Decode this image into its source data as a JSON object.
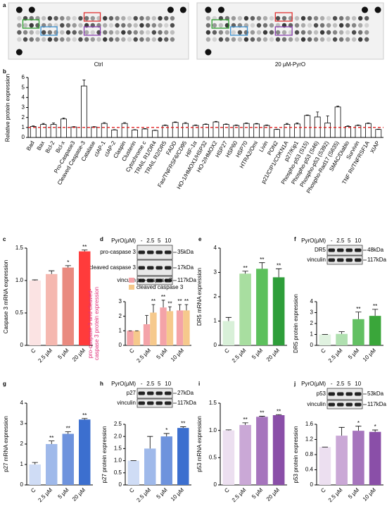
{
  "figure_a": {
    "panel": "a",
    "membranes": [
      "Ctrl",
      "20 μM-PyrO"
    ]
  },
  "blots": [
    {
      "treatment_label": "PyrO(μM)",
      "lanes": [
        "-",
        "2.5",
        "5",
        "10"
      ],
      "rows": [
        {
          "name": "pro-caspase 3",
          "kda": "35kDa"
        },
        {
          "name": "cleaved caspase 3",
          "kda": "17kDa"
        },
        {
          "name": "vinculin",
          "kda": "117kDa"
        }
      ]
    },
    {
      "treatment_label": "PyrO(μM)",
      "lanes": [
        "-",
        "2.5",
        "5",
        "10"
      ],
      "rows": [
        {
          "name": "DR5",
          "kda": "48kDa"
        },
        {
          "name": "vinculin",
          "kda": "117kDa"
        }
      ]
    },
    {
      "treatment_label": "PyrO(μM)",
      "lanes": [
        "-",
        "2.5",
        "5",
        "10"
      ],
      "rows": [
        {
          "name": "p27",
          "kda": "27kDa"
        },
        {
          "name": "vinculin",
          "kda": "117kDa"
        }
      ]
    },
    {
      "treatment_label": "PyrO(μM)",
      "lanes": [
        "-",
        "2.5",
        "5",
        "10"
      ],
      "rows": [
        {
          "name": "p53",
          "kda": "53kDa"
        },
        {
          "name": "vinculin",
          "kda": "117kDa"
        }
      ]
    }
  ],
  "chart_data": [
    {
      "type": "bar",
      "panel": "b",
      "ylabel": "Relative protein expression",
      "categories": [
        "Bad",
        "Bax",
        "Bcl-2",
        "Bcl-x",
        "Pro-Caspase3",
        "Cleaved Caspase-3",
        "Catalase",
        "cIAP-1",
        "cIAP-2",
        "Claspin",
        "Clusterin",
        "Cytochrome c",
        "TRAIL R1/DR4",
        "TRAIL R2/DR5",
        "FADD",
        "Fas/TNFRSF6/CD95",
        "HIF-1α",
        "HO-1/HMOX1/HSP32",
        "HO-2/HMOX2",
        "HSP27",
        "HSP60",
        "HSP70",
        "HTRA2/Omi",
        "Livin",
        "PON2",
        "p21/CIP1/CDKN1A",
        "p27/Kip1",
        "Phospho-p53 (S15)",
        "Phospho-p53 (S46)",
        "Phospho-p53 (S392)",
        "Phospho-Rad17 (S635)",
        "SMAC/Diablo",
        "Survivin",
        "TNF RI/TNFRSF1A",
        "XIAP"
      ],
      "label_colors": [
        "#000000",
        "#000000",
        "#000000",
        "#000000",
        "#000000",
        "#e02020",
        "#000000",
        "#000000",
        "#000000",
        "#000000",
        "#000000",
        "#000000",
        "#000000",
        "#1a9a3a",
        "#000000",
        "#000000",
        "#000000",
        "#000000",
        "#000000",
        "#000000",
        "#000000",
        "#000000",
        "#000000",
        "#000000",
        "#000000",
        "#000000",
        "#2f7fd0",
        "#000000",
        "#000000",
        "#8a3fb0",
        "#000000",
        "#000000",
        "#000000",
        "#000000",
        "#000000"
      ],
      "values": [
        1.1,
        1.3,
        1.3,
        1.85,
        1.05,
        5.15,
        1.05,
        1.4,
        0.75,
        1.4,
        0.75,
        0.85,
        0.7,
        1.2,
        1.5,
        1.4,
        1.2,
        1.3,
        1.55,
        1.3,
        1.2,
        1.4,
        1.35,
        1.2,
        0.8,
        1.3,
        1.35,
        2.2,
        2.05,
        1.45,
        3.05,
        1.1,
        1.2,
        1.4,
        0.8
      ],
      "errors": [
        0.05,
        0.1,
        0.15,
        0.1,
        0.03,
        0.6,
        0.03,
        0.08,
        0.03,
        0.08,
        0.03,
        0.04,
        0.03,
        0.05,
        0.05,
        0.08,
        0.05,
        0.05,
        0.05,
        0.05,
        0.05,
        0.05,
        0.05,
        0.05,
        0.03,
        0.1,
        0.1,
        0.05,
        0.5,
        0.7,
        0.1,
        0.05,
        0.05,
        0.05,
        0.03
      ],
      "color": "#ffffff",
      "edgecolor": "#000000",
      "refline": 1,
      "refline_color": "#e02020",
      "ylim": [
        0,
        6
      ],
      "yticks": [
        0,
        1,
        2,
        3,
        4,
        5,
        6
      ]
    },
    {
      "type": "bar",
      "panel": "c",
      "ylabel": "Caspase 3 mRNA expression",
      "categories": [
        "C",
        "2.5 μM",
        "5 μM",
        "20 μM"
      ],
      "values": [
        1,
        1.1,
        1.2,
        1.45
      ],
      "errors": [
        0.01,
        0.05,
        0.03,
        0.02
      ],
      "significance": [
        null,
        null,
        "*",
        "**"
      ],
      "colors": [
        "#fbe3e3",
        "#f5b8b0",
        "#e98a7f",
        "#ff3b3b"
      ],
      "ylim": [
        0,
        1.5
      ],
      "yticks": [
        0,
        0.5,
        {
          "value": 1,
          "label": "1.0"
        },
        1.5
      ]
    },
    {
      "type": "grouped_bar",
      "panel": "d",
      "ylabel": "pro-caspase 3 and cleaved-caspase 3 protein expression",
      "ylabel_color": "#e0307a",
      "categories": [
        "C",
        "2.5 μM",
        "5 μM",
        "10 μM"
      ],
      "series": [
        {
          "name": "pro-caspase 3",
          "color": "#f4a3a8",
          "values": [
            1,
            1.45,
            2.6,
            2.4
          ],
          "errors": [
            0,
            0.6,
            0.5,
            0.4
          ],
          "significance": [
            null,
            null,
            "**",
            "**"
          ]
        },
        {
          "name": "cleaved caspase 3",
          "color": "#f6c98c",
          "values": [
            1,
            2.25,
            2.35,
            2.4
          ],
          "errors": [
            0,
            0.55,
            0.3,
            0.4
          ],
          "significance": [
            null,
            "**",
            "**",
            "**"
          ]
        }
      ],
      "ylim": [
        0,
        3
      ],
      "yticks": [
        0,
        1,
        2,
        3
      ]
    },
    {
      "type": "bar",
      "panel": "e",
      "ylabel": "DR5 mRNA expression",
      "categories": [
        "C",
        "2.5 μM",
        "5 μM",
        "20 μM"
      ],
      "values": [
        1,
        2.95,
        3.15,
        2.8
      ],
      "errors": [
        0.15,
        0.1,
        0.25,
        0.35
      ],
      "significance": [
        null,
        "**",
        "**",
        "**"
      ],
      "colors": [
        "#d8f0d8",
        "#a8dea0",
        "#5cc05c",
        "#2e9e3a"
      ],
      "ylim": [
        0,
        4
      ],
      "yticks": [
        0,
        1,
        2,
        3,
        4
      ]
    },
    {
      "type": "bar",
      "panel": "f",
      "ylabel": "DR5 protein expression",
      "categories": [
        "C",
        "2.5 μM",
        "5 μM",
        "10 μM"
      ],
      "values": [
        1,
        1.05,
        2.4,
        2.7
      ],
      "errors": [
        0,
        0.2,
        0.65,
        0.6
      ],
      "significance": [
        null,
        null,
        "**",
        "**"
      ],
      "colors": [
        "#e0f2e0",
        "#b0e0b0",
        "#62c062",
        "#3aa63a"
      ],
      "ylim": [
        0,
        4
      ],
      "yticks": [
        0,
        1,
        2,
        3,
        4
      ]
    },
    {
      "type": "bar",
      "panel": "g",
      "ylabel": "p27 mRNA expression",
      "categories": [
        "C",
        "2.5 μM",
        "5 μM",
        "20 μM"
      ],
      "values": [
        1,
        2,
        2.5,
        3.2
      ],
      "errors": [
        0.1,
        0.15,
        0.1,
        0.05
      ],
      "significance": [
        null,
        "**",
        "**",
        "**"
      ],
      "colors": [
        "#cfdcf5",
        "#9fb9ea",
        "#6e93dd",
        "#3c6fcf"
      ],
      "ylim": [
        0,
        4
      ],
      "yticks": [
        0,
        1,
        2,
        3,
        4
      ]
    },
    {
      "type": "bar",
      "panel": "h",
      "ylabel": "p27 protein expression",
      "categories": [
        "C",
        "2.5 μM",
        "5 μM",
        "10 μM"
      ],
      "values": [
        1,
        1.5,
        2,
        2.35
      ],
      "errors": [
        0,
        0.5,
        0.12,
        0.05
      ],
      "significance": [
        null,
        null,
        "*",
        "**"
      ],
      "colors": [
        "#cfdcf5",
        "#9fb9ea",
        "#6e93dd",
        "#3c6fcf"
      ],
      "ylim": [
        0,
        2.5
      ],
      "yticks": [
        0,
        0.5,
        {
          "value": 1,
          "label": "1.0"
        },
        1.5,
        {
          "value": 2,
          "label": "2.0"
        },
        2.5
      ]
    },
    {
      "type": "bar",
      "panel": "i",
      "ylabel": "p53 mRNA expression",
      "categories": [
        "C",
        "2.5 μM",
        "5 μM",
        "20 μM"
      ],
      "values": [
        1,
        1.1,
        1.25,
        1.28
      ],
      "errors": [
        0.01,
        0.04,
        0.01,
        0.01
      ],
      "significance": [
        null,
        "**",
        "**",
        "**"
      ],
      "colors": [
        "#ecdff0",
        "#caa8d6",
        "#a675bd",
        "#8a4fa8"
      ],
      "ylim": [
        0,
        1.5
      ],
      "yticks": [
        0,
        0.5,
        {
          "value": 1,
          "label": "1.0"
        },
        1.5
      ]
    },
    {
      "type": "bar",
      "panel": "j",
      "ylabel": "p53 protein expression",
      "categories": [
        "C",
        "2.5 μM",
        "5 μM",
        "10 μM"
      ],
      "values": [
        1,
        1.3,
        1.43,
        1.4
      ],
      "errors": [
        0,
        0.22,
        0.12,
        0.05
      ],
      "significance": [
        null,
        null,
        "*",
        "*"
      ],
      "colors": [
        "#ecdff0",
        "#caa8d6",
        "#a675bd",
        "#8a4fa8"
      ],
      "ylim": [
        0,
        1.6
      ],
      "yticks": [
        0,
        0.4,
        0.8,
        1.2,
        1.6
      ]
    }
  ]
}
